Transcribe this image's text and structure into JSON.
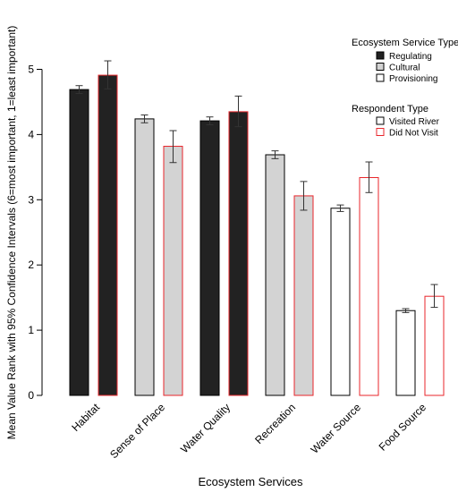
{
  "chart_data": {
    "type": "bar",
    "xlabel": "Ecosystem Services",
    "ylabel": "Mean Value Rank with 95% Confidence Intervals (6=most important, 1=least important)",
    "ylim": [
      0,
      5
    ],
    "yticks": [
      0,
      1,
      2,
      3,
      4,
      5
    ],
    "grid": false,
    "categories": [
      "Habitat",
      "Sense of Place",
      "Water Quality",
      "Recreation",
      "Water Source",
      "Food Source"
    ],
    "service_types": [
      "Regulating",
      "Cultural",
      "Regulating",
      "Cultural",
      "Provisioning",
      "Provisioning"
    ],
    "series": [
      {
        "name": "Visited River",
        "values": [
          4.69,
          4.24,
          4.21,
          3.69,
          2.87,
          1.3
        ],
        "ci_low": [
          4.63,
          4.18,
          4.15,
          3.63,
          2.82,
          1.27
        ],
        "ci_high": [
          4.75,
          4.3,
          4.27,
          3.75,
          2.92,
          1.33
        ]
      },
      {
        "name": "Did Not Visit",
        "values": [
          4.91,
          3.82,
          4.35,
          3.06,
          3.34,
          1.52
        ],
        "ci_low": [
          4.7,
          3.57,
          4.12,
          2.84,
          3.11,
          1.35
        ],
        "ci_high": [
          5.13,
          4.06,
          4.59,
          3.28,
          3.58,
          1.7
        ]
      }
    ],
    "legend": {
      "placement": "top-right",
      "service_type_title": "Ecosystem Service Type",
      "service_type_items": [
        {
          "label": "Regulating",
          "fill": "#222222"
        },
        {
          "label": "Cultural",
          "fill": "#d3d3d3"
        },
        {
          "label": "Provisioning",
          "fill": "#ffffff"
        }
      ],
      "respondent_title": "Respondent Type",
      "respondent_items": [
        {
          "label": "Visited River",
          "stroke": "#000000"
        },
        {
          "label": "Did Not Visit",
          "stroke": "#e8262b"
        }
      ]
    },
    "colors": {
      "Regulating": "#222222",
      "Cultural": "#d3d3d3",
      "Provisioning": "#ffffff",
      "visited_border": "#000000",
      "not_visited_border": "#e8262b",
      "errorbar": "#333333"
    }
  }
}
